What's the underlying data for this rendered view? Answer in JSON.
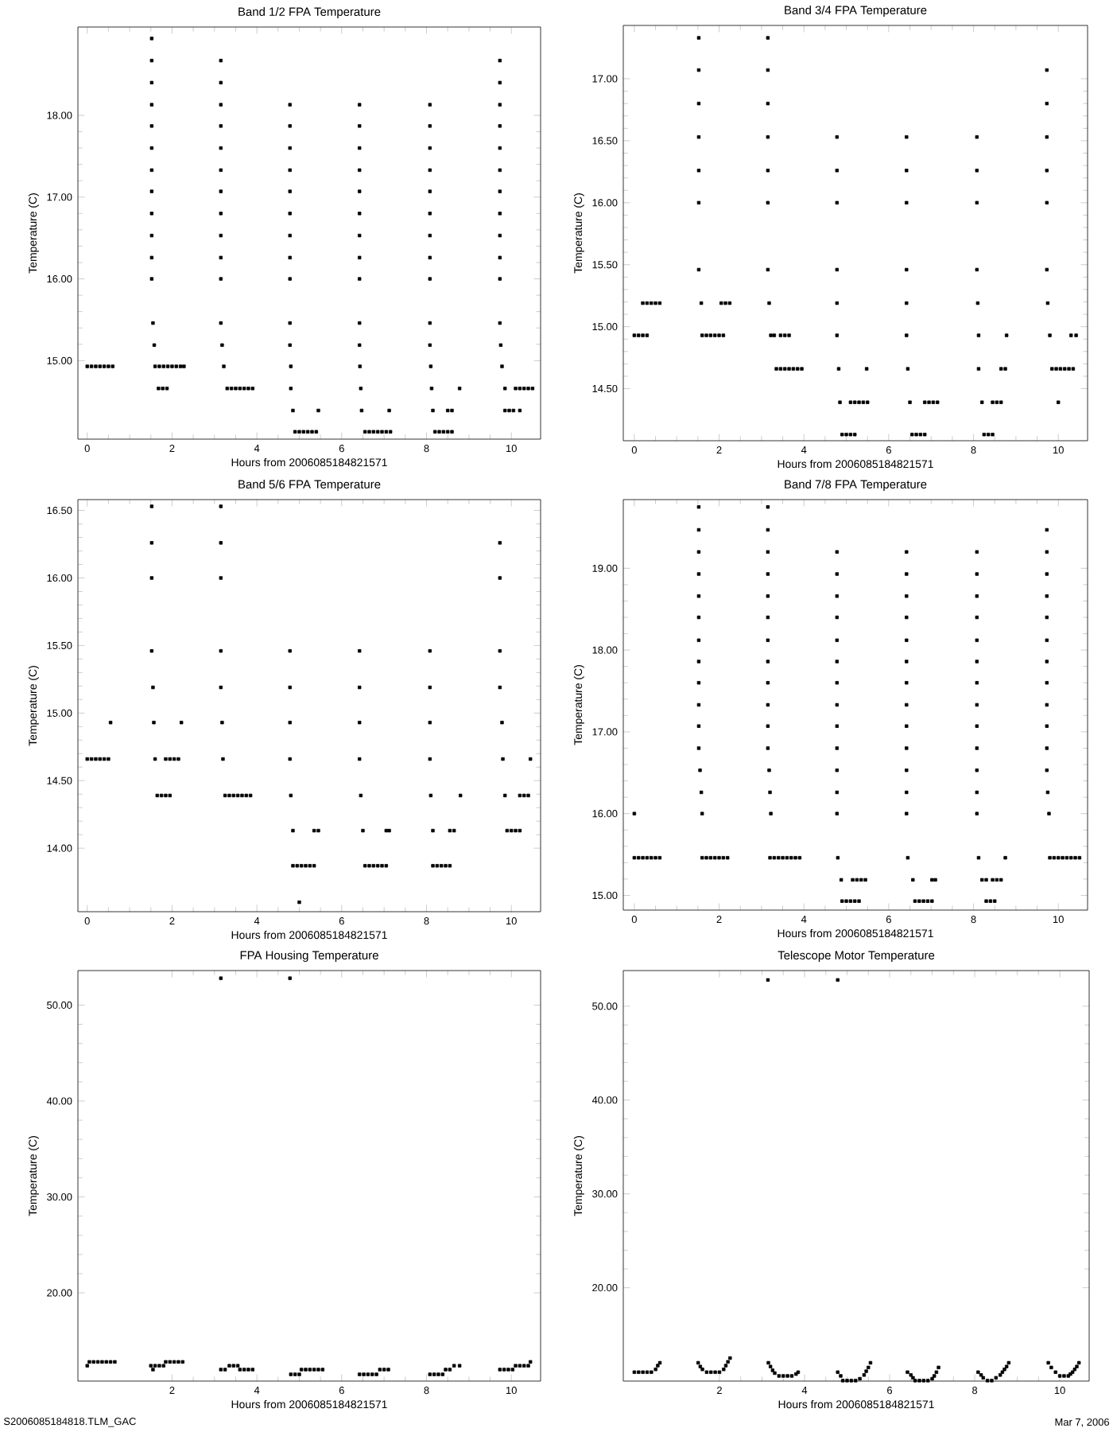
{
  "chart_data": [
    {
      "type": "scatter",
      "title": "Band 1/2 FPA Temperature",
      "xlabel": "Hours from 2006085184821571",
      "ylabel": "Temperature (C)",
      "marker": "square",
      "xlim": [
        -0.22,
        10.69
      ],
      "ylim": [
        14.04,
        19.08
      ],
      "xticks": [
        0,
        2,
        4,
        6,
        8,
        10
      ],
      "yticks": [
        {
          "value": 15,
          "label": "15.00"
        },
        {
          "value": 16,
          "label": "16.00"
        },
        {
          "value": 17,
          "label": "17.00"
        },
        {
          "value": 18,
          "label": "18.00"
        }
      ],
      "series": [
        {
          "color": "#000000",
          "x": [
            0,
            0.1,
            0.2,
            0.3,
            0.4,
            0.5,
            0.6
          ],
          "values": [
            14.93,
            14.93,
            14.93,
            14.93,
            14.93,
            14.93,
            14.93
          ]
        },
        {
          "color": "#000000",
          "x": [
            1.52,
            1.52,
            1.52,
            1.52,
            1.52,
            1.52,
            1.52,
            1.52,
            1.52,
            1.52,
            1.52,
            1.52,
            1.55,
            1.58
          ],
          "values": [
            18.94,
            18.67,
            18.4,
            18.13,
            17.87,
            17.6,
            17.33,
            17.07,
            16.8,
            16.53,
            16.26,
            16.0,
            15.46,
            15.19
          ]
        },
        {
          "color": "#000000",
          "x": [
            1.6,
            1.7,
            1.8,
            1.9,
            2.0,
            2.1,
            2.2,
            2.28,
            1.68,
            1.78,
            1.88
          ],
          "values": [
            14.93,
            14.93,
            14.93,
            14.93,
            14.93,
            14.93,
            14.93,
            14.93,
            14.66,
            14.66,
            14.66
          ]
        },
        {
          "color": "#000000",
          "x": [
            3.15,
            3.15,
            3.15,
            3.15,
            3.15,
            3.15,
            3.15,
            3.15,
            3.15,
            3.15,
            3.15,
            3.15,
            3.18,
            3.22,
            3.3,
            3.4,
            3.5,
            3.6,
            3.7,
            3.8,
            3.9
          ],
          "values": [
            18.67,
            18.4,
            18.13,
            17.87,
            17.6,
            17.33,
            17.07,
            16.8,
            16.53,
            16.26,
            16.0,
            15.46,
            15.19,
            14.93,
            14.66,
            14.66,
            14.66,
            14.66,
            14.66,
            14.66,
            14.66
          ]
        },
        {
          "color": "#000000",
          "x": [
            4.78,
            4.78,
            4.78,
            4.78,
            4.78,
            4.78,
            4.78,
            4.78,
            4.78,
            4.78,
            4.78,
            4.8,
            4.8,
            4.85,
            5.45,
            4.9,
            5.0,
            5.1,
            5.2,
            5.3,
            5.4
          ],
          "values": [
            18.13,
            17.87,
            17.6,
            17.33,
            17.07,
            16.8,
            16.53,
            16.26,
            16.0,
            15.46,
            15.19,
            14.93,
            14.66,
            14.39,
            14.39,
            14.13,
            14.13,
            14.13,
            14.13,
            14.13,
            14.13
          ]
        },
        {
          "color": "#000000",
          "x": [
            6.42,
            6.42,
            6.42,
            6.42,
            6.42,
            6.42,
            6.42,
            6.42,
            6.42,
            6.42,
            6.42,
            6.43,
            6.45,
            6.47,
            7.12,
            6.55,
            6.65,
            6.75,
            6.85,
            6.95,
            7.05,
            7.15
          ],
          "values": [
            18.13,
            17.87,
            17.6,
            17.33,
            17.07,
            16.8,
            16.53,
            16.26,
            16.0,
            15.46,
            15.19,
            14.93,
            14.66,
            14.39,
            14.39,
            14.13,
            14.13,
            14.13,
            14.13,
            14.13,
            14.13,
            14.13
          ]
        },
        {
          "color": "#000000",
          "x": [
            8.08,
            8.08,
            8.08,
            8.08,
            8.08,
            8.08,
            8.08,
            8.08,
            8.08,
            8.08,
            8.08,
            8.1,
            8.12,
            8.15,
            8.5,
            8.6,
            8.78,
            8.2,
            8.3,
            8.4,
            8.5,
            8.6
          ],
          "values": [
            18.13,
            17.87,
            17.6,
            17.33,
            17.07,
            16.8,
            16.53,
            16.26,
            16.0,
            15.46,
            15.19,
            14.93,
            14.66,
            14.39,
            14.39,
            14.39,
            14.66,
            14.13,
            14.13,
            14.13,
            14.13,
            14.13
          ]
        },
        {
          "color": "#000000",
          "x": [
            9.73,
            9.73,
            9.73,
            9.73,
            9.73,
            9.73,
            9.73,
            9.73,
            9.73,
            9.73,
            9.73,
            9.73,
            9.75,
            9.78,
            9.85,
            9.85,
            9.95,
            10.05,
            10.2,
            10.1,
            10.2,
            10.3,
            10.4,
            10.5
          ],
          "values": [
            18.67,
            18.4,
            18.13,
            17.87,
            17.6,
            17.33,
            17.07,
            16.8,
            16.53,
            16.26,
            16.0,
            15.46,
            15.19,
            14.93,
            14.66,
            14.39,
            14.39,
            14.39,
            14.39,
            14.66,
            14.66,
            14.66,
            14.66,
            14.66
          ]
        }
      ]
    },
    {
      "type": "scatter",
      "title": "Band 3/4 FPA Temperature",
      "xlabel": "Hours from 2006085184821571",
      "ylabel": "Temperature (C)",
      "marker": "square",
      "xlim": [
        -0.26,
        10.69
      ],
      "ylim": [
        14.08,
        17.43
      ],
      "xticks": [
        0,
        2,
        4,
        6,
        8,
        10
      ],
      "yticks": [
        {
          "value": 14.5,
          "label": "14.50"
        },
        {
          "value": 15,
          "label": "15.00"
        },
        {
          "value": 15.5,
          "label": "15.50"
        },
        {
          "value": 16,
          "label": "16.00"
        },
        {
          "value": 16.5,
          "label": "16.50"
        },
        {
          "value": 17,
          "label": "17.00"
        }
      ],
      "series": [
        {
          "color": "#000000",
          "x": [
            0,
            0.1,
            0.2,
            0.3,
            0.2,
            0.3,
            0.4,
            0.5,
            0.6
          ],
          "values": [
            14.93,
            14.93,
            14.93,
            14.93,
            15.19,
            15.19,
            15.19,
            15.19,
            15.19
          ]
        },
        {
          "color": "#000000",
          "x": [
            1.52,
            1.52,
            1.52,
            1.52,
            1.52,
            1.52,
            1.52,
            1.58,
            1.6,
            1.7,
            1.8,
            1.9,
            2.0,
            2.1,
            2.05,
            2.15,
            2.25
          ],
          "values": [
            17.33,
            17.07,
            16.8,
            16.53,
            16.26,
            16.0,
            15.46,
            15.19,
            14.93,
            14.93,
            14.93,
            14.93,
            14.93,
            14.93,
            15.19,
            15.19,
            15.19
          ]
        },
        {
          "color": "#000000",
          "x": [
            3.15,
            3.15,
            3.15,
            3.15,
            3.15,
            3.15,
            3.15,
            3.18,
            3.22,
            3.3,
            3.45,
            3.55,
            3.65,
            3.35,
            3.45,
            3.55,
            3.65,
            3.75,
            3.85,
            3.95
          ],
          "values": [
            17.33,
            17.07,
            16.8,
            16.53,
            16.26,
            16.0,
            15.46,
            15.19,
            14.93,
            14.93,
            14.93,
            14.93,
            14.93,
            14.66,
            14.66,
            14.66,
            14.66,
            14.66,
            14.66,
            14.66
          ]
        },
        {
          "color": "#000000",
          "x": [
            4.78,
            4.78,
            4.78,
            4.78,
            4.78,
            4.78,
            4.82,
            4.85,
            5.1,
            5.2,
            5.3,
            5.4,
            5.5,
            5.48,
            4.9,
            5.0,
            5.1,
            5.2
          ],
          "values": [
            16.53,
            16.26,
            16.0,
            15.46,
            15.19,
            14.93,
            14.66,
            14.39,
            14.39,
            14.39,
            14.39,
            14.39,
            14.39,
            14.66,
            14.13,
            14.13,
            14.13,
            14.13
          ]
        },
        {
          "color": "#000000",
          "x": [
            6.42,
            6.42,
            6.42,
            6.42,
            6.42,
            6.42,
            6.45,
            6.5,
            6.85,
            6.95,
            7.05,
            7.15,
            6.55,
            6.65,
            6.75,
            6.85
          ],
          "values": [
            16.53,
            16.26,
            16.0,
            15.46,
            15.19,
            14.93,
            14.66,
            14.39,
            14.39,
            14.39,
            14.39,
            14.39,
            14.13,
            14.13,
            14.13,
            14.13
          ]
        },
        {
          "color": "#000000",
          "x": [
            8.08,
            8.08,
            8.08,
            8.08,
            8.1,
            8.12,
            8.12,
            8.2,
            8.45,
            8.55,
            8.65,
            8.65,
            8.75,
            8.78,
            8.25,
            8.35,
            8.45
          ],
          "values": [
            16.53,
            16.26,
            16.0,
            15.46,
            15.19,
            14.93,
            14.66,
            14.39,
            14.39,
            14.39,
            14.39,
            14.66,
            14.66,
            14.93,
            14.13,
            14.13,
            14.13
          ]
        },
        {
          "color": "#000000",
          "x": [
            9.73,
            9.73,
            9.73,
            9.73,
            9.73,
            9.73,
            9.75,
            9.8,
            9.85,
            9.95,
            10.05,
            10.15,
            10.25,
            10.35,
            10.0,
            10.3,
            10.42
          ],
          "values": [
            17.07,
            16.8,
            16.53,
            16.26,
            16.0,
            15.46,
            15.19,
            14.93,
            14.66,
            14.66,
            14.66,
            14.66,
            14.66,
            14.66,
            14.39,
            14.93,
            14.93
          ]
        }
      ]
    },
    {
      "type": "scatter",
      "title": "Band 5/6 FPA Temperature",
      "xlabel": "Hours from 2006085184821571",
      "ylabel": "Temperature (C)",
      "marker": "square",
      "xlim": [
        -0.22,
        10.69
      ],
      "ylim": [
        13.53,
        16.58
      ],
      "xticks": [
        0,
        2,
        4,
        6,
        8,
        10
      ],
      "yticks": [
        {
          "value": 14,
          "label": "14.00"
        },
        {
          "value": 14.5,
          "label": "14.50"
        },
        {
          "value": 15,
          "label": "15.00"
        },
        {
          "value": 15.5,
          "label": "15.50"
        },
        {
          "value": 16,
          "label": "16.00"
        },
        {
          "value": 16.5,
          "label": "16.50"
        }
      ],
      "series": [
        {
          "color": "#000000",
          "x": [
            0,
            0.1,
            0.2,
            0.3,
            0.4,
            0.5,
            0.55
          ],
          "values": [
            14.66,
            14.66,
            14.66,
            14.66,
            14.66,
            14.66,
            14.93
          ]
        },
        {
          "color": "#000000",
          "x": [
            1.52,
            1.52,
            1.52,
            1.52,
            1.55,
            1.57,
            1.6,
            1.65,
            1.75,
            1.85,
            1.95,
            1.85,
            1.95,
            2.05,
            2.15,
            2.22
          ],
          "values": [
            16.53,
            16.26,
            16.0,
            15.46,
            15.19,
            14.93,
            14.66,
            14.39,
            14.39,
            14.39,
            14.39,
            14.66,
            14.66,
            14.66,
            14.66,
            14.93
          ]
        },
        {
          "color": "#000000",
          "x": [
            3.15,
            3.15,
            3.15,
            3.15,
            3.15,
            3.18,
            3.2,
            3.25,
            3.35,
            3.45,
            3.55,
            3.65,
            3.75,
            3.85
          ],
          "values": [
            16.53,
            16.26,
            16.0,
            15.46,
            15.19,
            14.93,
            14.66,
            14.39,
            14.39,
            14.39,
            14.39,
            14.39,
            14.39,
            14.39
          ]
        },
        {
          "color": "#000000",
          "x": [
            4.78,
            4.78,
            4.78,
            4.78,
            4.8,
            4.85,
            5.35,
            5.45,
            4.85,
            4.95,
            5.05,
            5.15,
            5.25,
            5.35,
            5.0
          ],
          "values": [
            15.46,
            15.19,
            14.93,
            14.66,
            14.39,
            14.13,
            14.13,
            14.13,
            13.87,
            13.87,
            13.87,
            13.87,
            13.87,
            13.87,
            13.6
          ]
        },
        {
          "color": "#000000",
          "x": [
            6.42,
            6.42,
            6.42,
            6.42,
            6.45,
            6.5,
            7.05,
            7.12,
            6.55,
            6.65,
            6.75,
            6.85,
            6.95,
            7.05
          ],
          "values": [
            15.46,
            15.19,
            14.93,
            14.66,
            14.39,
            14.13,
            14.13,
            14.13,
            13.87,
            13.87,
            13.87,
            13.87,
            13.87,
            13.87
          ]
        },
        {
          "color": "#000000",
          "x": [
            8.08,
            8.08,
            8.08,
            8.08,
            8.1,
            8.15,
            8.55,
            8.65,
            8.8,
            8.15,
            8.25,
            8.35,
            8.45,
            8.55
          ],
          "values": [
            15.46,
            15.19,
            14.93,
            14.66,
            14.39,
            14.13,
            14.13,
            14.13,
            14.39,
            13.87,
            13.87,
            13.87,
            13.87,
            13.87
          ]
        },
        {
          "color": "#000000",
          "x": [
            9.73,
            9.73,
            9.73,
            9.73,
            9.78,
            9.8,
            9.85,
            9.9,
            10.0,
            10.1,
            10.2,
            10.2,
            10.3,
            10.4,
            10.45
          ],
          "values": [
            16.26,
            16.0,
            15.46,
            15.19,
            14.93,
            14.66,
            14.39,
            14.13,
            14.13,
            14.13,
            14.13,
            14.39,
            14.39,
            14.39,
            14.66
          ]
        }
      ]
    },
    {
      "type": "scatter",
      "title": "Band 7/8 FPA Temperature",
      "xlabel": "Hours from 2006085184821571",
      "ylabel": "Temperature (C)",
      "marker": "square",
      "xlim": [
        -0.26,
        10.69
      ],
      "ylim": [
        14.82,
        19.84
      ],
      "xticks": [
        0,
        2,
        4,
        6,
        8,
        10
      ],
      "yticks": [
        {
          "value": 15,
          "label": "15.00"
        },
        {
          "value": 16,
          "label": "16.00"
        },
        {
          "value": 17,
          "label": "17.00"
        },
        {
          "value": 18,
          "label": "18.00"
        },
        {
          "value": 19,
          "label": "19.00"
        }
      ],
      "series": [
        {
          "color": "#000000",
          "x": [
            0,
            0,
            0.1,
            0.2,
            0.3,
            0.4,
            0.5,
            0.6
          ],
          "values": [
            16.0,
            15.46,
            15.46,
            15.46,
            15.46,
            15.46,
            15.46,
            15.46
          ]
        },
        {
          "color": "#000000",
          "x": [
            1.52,
            1.52,
            1.52,
            1.52,
            1.52,
            1.52,
            1.52,
            1.52,
            1.52,
            1.52,
            1.52,
            1.52,
            1.55,
            1.58,
            1.6,
            1.6,
            1.7,
            1.8,
            1.9,
            2.0,
            2.1,
            2.2
          ],
          "values": [
            19.75,
            19.47,
            19.2,
            18.93,
            18.66,
            18.4,
            18.12,
            17.86,
            17.6,
            17.33,
            17.07,
            16.8,
            16.53,
            16.26,
            16.0,
            15.46,
            15.46,
            15.46,
            15.46,
            15.46,
            15.46,
            15.46
          ]
        },
        {
          "color": "#000000",
          "x": [
            3.15,
            3.15,
            3.15,
            3.15,
            3.15,
            3.15,
            3.15,
            3.15,
            3.15,
            3.15,
            3.15,
            3.15,
            3.18,
            3.2,
            3.22,
            3.2,
            3.3,
            3.4,
            3.5,
            3.6,
            3.7,
            3.8,
            3.9
          ],
          "values": [
            19.75,
            19.47,
            19.2,
            18.93,
            18.66,
            18.4,
            18.12,
            17.86,
            17.6,
            17.33,
            17.07,
            16.8,
            16.53,
            16.26,
            16.0,
            15.46,
            15.46,
            15.46,
            15.46,
            15.46,
            15.46,
            15.46,
            15.46
          ]
        },
        {
          "color": "#000000",
          "x": [
            4.78,
            4.78,
            4.78,
            4.78,
            4.78,
            4.78,
            4.78,
            4.78,
            4.78,
            4.78,
            4.78,
            4.78,
            4.78,
            4.8,
            4.88,
            5.15,
            5.25,
            5.35,
            5.45,
            4.9,
            5.0,
            5.1,
            5.2,
            5.3
          ],
          "values": [
            19.2,
            18.93,
            18.66,
            18.4,
            18.12,
            17.86,
            17.6,
            17.33,
            17.07,
            16.8,
            16.53,
            16.26,
            16.0,
            15.46,
            15.19,
            15.19,
            15.19,
            15.19,
            15.19,
            14.93,
            14.93,
            14.93,
            14.93,
            14.93
          ]
        },
        {
          "color": "#000000",
          "x": [
            6.42,
            6.42,
            6.42,
            6.42,
            6.42,
            6.42,
            6.42,
            6.42,
            6.42,
            6.42,
            6.42,
            6.42,
            6.42,
            6.45,
            6.57,
            7.02,
            7.1,
            6.62,
            6.72,
            6.82,
            6.92,
            7.02
          ],
          "values": [
            19.2,
            18.93,
            18.66,
            18.4,
            18.12,
            17.86,
            17.6,
            17.33,
            17.07,
            16.8,
            16.53,
            16.26,
            16.0,
            15.46,
            15.19,
            15.19,
            15.19,
            14.93,
            14.93,
            14.93,
            14.93,
            14.93
          ]
        },
        {
          "color": "#000000",
          "x": [
            8.08,
            8.08,
            8.08,
            8.08,
            8.08,
            8.08,
            8.08,
            8.08,
            8.08,
            8.08,
            8.08,
            8.08,
            8.08,
            8.12,
            8.2,
            8.3,
            8.45,
            8.55,
            8.65,
            8.75,
            8.3,
            8.4,
            8.5
          ],
          "values": [
            19.2,
            18.93,
            18.66,
            18.4,
            18.12,
            17.86,
            17.6,
            17.33,
            17.07,
            16.8,
            16.53,
            16.26,
            16.0,
            15.46,
            15.19,
            15.19,
            15.19,
            15.19,
            15.19,
            15.46,
            14.93,
            14.93,
            14.93
          ]
        },
        {
          "color": "#000000",
          "x": [
            9.73,
            9.73,
            9.73,
            9.73,
            9.73,
            9.73,
            9.73,
            9.73,
            9.73,
            9.73,
            9.73,
            9.73,
            9.75,
            9.78,
            9.8,
            9.9,
            10.0,
            10.1,
            10.2,
            10.3,
            10.4,
            10.5
          ],
          "values": [
            19.47,
            19.2,
            18.93,
            18.66,
            18.4,
            18.12,
            17.86,
            17.6,
            17.33,
            17.07,
            16.8,
            16.53,
            16.26,
            16.0,
            15.46,
            15.46,
            15.46,
            15.46,
            15.46,
            15.46,
            15.46,
            15.46
          ]
        }
      ]
    },
    {
      "type": "scatter",
      "title": "FPA Housing Temperature",
      "xlabel": "Hours from 2006085184821571",
      "ylabel": "Temperature (C)",
      "marker": "square",
      "xlim": [
        -0.22,
        10.69
      ],
      "ylim": [
        10.8,
        53.6
      ],
      "xticks": [
        2,
        4,
        6,
        8,
        10
      ],
      "yticks": [
        {
          "value": 20,
          "label": "20.00"
        },
        {
          "value": 30,
          "label": "30.00"
        },
        {
          "value": 40,
          "label": "40.00"
        },
        {
          "value": 50,
          "label": "50.00"
        }
      ],
      "annotations": [
        "S2006085184818.TLM_GAC"
      ],
      "series": [
        {
          "color": "#000000",
          "x": [
            0,
            0.05,
            0.15,
            0.25,
            0.35,
            0.45,
            0.55,
            0.65
          ],
          "values": [
            12.4,
            12.8,
            12.8,
            12.8,
            12.8,
            12.8,
            12.8,
            12.8
          ]
        },
        {
          "color": "#000000",
          "x": [
            1.5,
            1.6,
            1.7,
            1.8,
            1.55,
            1.85,
            1.95,
            2.05,
            2.15,
            2.25
          ],
          "values": [
            12.4,
            12.4,
            12.4,
            12.4,
            12.0,
            12.8,
            12.8,
            12.8,
            12.8,
            12.8
          ]
        },
        {
          "color": "#000000",
          "x": [
            3.15,
            3.15,
            3.25,
            3.35,
            3.45,
            3.55,
            3.6,
            3.7,
            3.8,
            3.9
          ],
          "values": [
            52.8,
            12.0,
            12.0,
            12.4,
            12.4,
            12.4,
            12.0,
            12.0,
            12.0,
            12.0
          ]
        },
        {
          "color": "#000000",
          "x": [
            4.78,
            4.8,
            4.9,
            5.0,
            5.05,
            5.15,
            5.25,
            5.35,
            5.45,
            5.55
          ],
          "values": [
            52.8,
            11.5,
            11.5,
            11.5,
            12.0,
            12.0,
            12.0,
            12.0,
            12.0,
            12.0
          ]
        },
        {
          "color": "#000000",
          "x": [
            6.42,
            6.52,
            6.62,
            6.72,
            6.82,
            6.9,
            7.0,
            7.1
          ],
          "values": [
            11.5,
            11.5,
            11.5,
            11.5,
            11.5,
            12.0,
            12.0,
            12.0
          ]
        },
        {
          "color": "#000000",
          "x": [
            8.08,
            8.18,
            8.28,
            8.38,
            8.45,
            8.55,
            8.65,
            8.78
          ],
          "values": [
            11.5,
            11.5,
            11.5,
            11.5,
            12.0,
            12.0,
            12.4,
            12.4
          ]
        },
        {
          "color": "#000000",
          "x": [
            9.73,
            9.83,
            9.93,
            10.03,
            10.1,
            10.2,
            10.3,
            10.4,
            10.45
          ],
          "values": [
            12.0,
            12.0,
            12.0,
            12.0,
            12.4,
            12.4,
            12.4,
            12.4,
            12.8
          ]
        }
      ]
    },
    {
      "type": "scatter",
      "title": "Telescope Motor Temperature",
      "xlabel": "Hours from 2006085184821571",
      "ylabel": "Temperature (C)",
      "marker": "square",
      "xlim": [
        -0.26,
        10.69
      ],
      "ylim": [
        10.05,
        53.8
      ],
      "xticks": [
        2,
        4,
        6,
        8,
        10
      ],
      "yticks": [
        {
          "value": 20,
          "label": "20.00"
        },
        {
          "value": 30,
          "label": "30.00"
        },
        {
          "value": 40,
          "label": "40.00"
        },
        {
          "value": 50,
          "label": "50.00"
        }
      ],
      "annotations": [
        "Mar  7, 2006"
      ],
      "series": [
        {
          "color": "#000000",
          "x": [
            0,
            0.1,
            0.2,
            0.3,
            0.4,
            0.5,
            0.55,
            0.6
          ],
          "values": [
            11.0,
            11.0,
            11.0,
            11.0,
            11.0,
            11.3,
            11.7,
            12.0
          ]
        },
        {
          "color": "#000000",
          "x": [
            1.5,
            1.55,
            1.6,
            1.7,
            1.8,
            1.9,
            2.0,
            2.1,
            2.15,
            2.2,
            2.25
          ],
          "values": [
            12.0,
            11.6,
            11.3,
            11.0,
            11.0,
            11.0,
            11.0,
            11.3,
            11.7,
            12.1,
            12.5
          ]
        },
        {
          "color": "#000000",
          "x": [
            3.14,
            3.15,
            3.2,
            3.25,
            3.3,
            3.4,
            3.5,
            3.6,
            3.7,
            3.8,
            3.85
          ],
          "values": [
            52.8,
            12.0,
            11.6,
            11.2,
            10.9,
            10.6,
            10.6,
            10.6,
            10.6,
            10.8,
            11.0
          ]
        },
        {
          "color": "#000000",
          "x": [
            4.78,
            4.78,
            4.85,
            4.9,
            5.0,
            5.1,
            5.2,
            5.3,
            5.4,
            5.45,
            5.5,
            5.55
          ],
          "values": [
            52.8,
            11.0,
            10.6,
            10.1,
            10.1,
            10.1,
            10.1,
            10.3,
            10.7,
            11.1,
            11.5,
            12.0
          ]
        },
        {
          "color": "#000000",
          "x": [
            6.42,
            6.5,
            6.55,
            6.6,
            6.7,
            6.8,
            6.9,
            7.0,
            7.05,
            7.1,
            7.15
          ],
          "values": [
            11.0,
            10.7,
            10.4,
            10.1,
            10.1,
            10.1,
            10.1,
            10.3,
            10.6,
            11.0,
            11.5
          ]
        },
        {
          "color": "#000000",
          "x": [
            8.08,
            8.15,
            8.2,
            8.3,
            8.4,
            8.5,
            8.6,
            8.65,
            8.7,
            8.75,
            8.8
          ],
          "values": [
            11.0,
            10.7,
            10.4,
            10.1,
            10.1,
            10.4,
            10.7,
            11.0,
            11.3,
            11.6,
            12.0
          ]
        },
        {
          "color": "#000000",
          "x": [
            9.73,
            9.8,
            9.9,
            10.0,
            10.1,
            10.2,
            10.25,
            10.3,
            10.35,
            10.4,
            10.45
          ],
          "values": [
            12.0,
            11.5,
            11.0,
            10.6,
            10.6,
            10.6,
            10.8,
            11.0,
            11.3,
            11.6,
            12.0
          ]
        }
      ]
    }
  ]
}
